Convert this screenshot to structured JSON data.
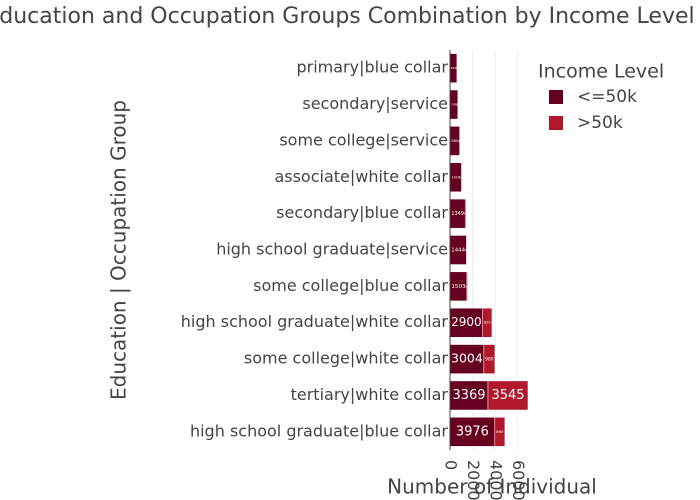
{
  "chart_data": {
    "type": "stacked-bar-horizontal",
    "title": "Education and Occupation Groups Combination by Income Level",
    "x_label": "Number of Individual",
    "y_label": "Education | Occupation Group",
    "legend_title": "Income Level",
    "categories": [
      "high school graduate|blue collar",
      "tertiary|white collar",
      "some college|white collar",
      "high school graduate|white collar",
      "some college|blue collar",
      "high school graduate|service",
      "secondary|blue collar",
      "associate|white collar",
      "some college|service",
      "secondary|service",
      "primary|blue collar"
    ],
    "series": [
      {
        "name": "<=50k",
        "color": "#67001f",
        "values": [
          3976,
          3369,
          3004,
          2900,
          1503,
          1444,
          1349,
          1018,
          860,
          700,
          620
        ]
      },
      {
        "name": ">50k",
        "color": "#b2182b",
        "values": [
          890,
          3545,
          980,
          820,
          60,
          60,
          90,
          50,
          40,
          30,
          20
        ]
      }
    ],
    "xlim": [
      0,
      6650
    ],
    "xticks": [
      0,
      2000,
      4000,
      6000
    ],
    "grid": true
  }
}
